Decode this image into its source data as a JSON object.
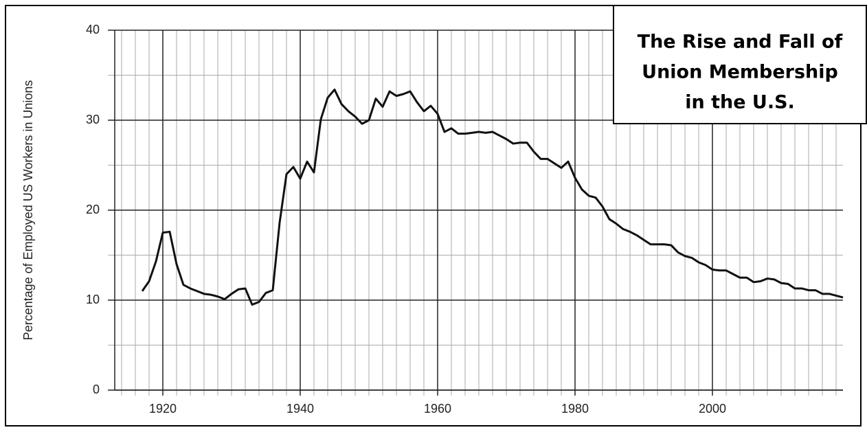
{
  "chart_data": {
    "type": "line",
    "title": [
      "The Rise and Fall of",
      "Union Membership",
      "in the U.S."
    ],
    "y_label": "Percentage of Employed US Workers in Unions",
    "x": [
      1917,
      1918,
      1919,
      1920,
      1921,
      1922,
      1923,
      1924,
      1925,
      1926,
      1927,
      1928,
      1929,
      1930,
      1931,
      1932,
      1933,
      1934,
      1935,
      1936,
      1937,
      1938,
      1939,
      1940,
      1941,
      1942,
      1943,
      1944,
      1945,
      1946,
      1947,
      1948,
      1949,
      1950,
      1951,
      1952,
      1953,
      1954,
      1955,
      1956,
      1957,
      1958,
      1959,
      1960,
      1961,
      1962,
      1963,
      1964,
      1965,
      1966,
      1967,
      1968,
      1969,
      1970,
      1971,
      1972,
      1973,
      1974,
      1975,
      1976,
      1977,
      1978,
      1979,
      1980,
      1981,
      1982,
      1983,
      1984,
      1985,
      1986,
      1987,
      1988,
      1989,
      1990,
      1991,
      1992,
      1993,
      1994,
      1995,
      1996,
      1997,
      1998,
      1999,
      2000,
      2001,
      2002,
      2003,
      2004,
      2005,
      2006,
      2007,
      2008,
      2009,
      2010,
      2011,
      2012,
      2013,
      2014,
      2015,
      2016,
      2017,
      2018,
      2019
    ],
    "series": [
      {
        "color": "#111111",
        "values": [
          11.0,
          12.1,
          14.3,
          17.5,
          17.6,
          14.0,
          11.7,
          11.3,
          11.0,
          10.7,
          10.6,
          10.4,
          10.1,
          10.7,
          11.2,
          11.3,
          9.5,
          9.8,
          10.8,
          11.1,
          18.6,
          24.0,
          24.8,
          23.5,
          25.4,
          24.2,
          30.1,
          32.5,
          33.4,
          31.8,
          31.0,
          30.4,
          29.6,
          30.0,
          32.4,
          31.5,
          33.2,
          32.7,
          32.9,
          33.2,
          32.0,
          31.0,
          31.6,
          30.7,
          28.7,
          29.1,
          28.5,
          28.5,
          28.6,
          28.7,
          28.6,
          28.7,
          28.3,
          27.9,
          27.4,
          27.5,
          27.5,
          26.5,
          25.7,
          25.7,
          25.2,
          24.7,
          25.4,
          23.6,
          22.3,
          21.6,
          21.4,
          20.4,
          19.0,
          18.5,
          17.9,
          17.6,
          17.2,
          16.7,
          16.2,
          16.2,
          16.2,
          16.1,
          15.3,
          14.9,
          14.7,
          14.2,
          13.9,
          13.4,
          13.3,
          13.3,
          12.9,
          12.5,
          12.5,
          12.0,
          12.1,
          12.4,
          12.3,
          11.9,
          11.8,
          11.3,
          11.3,
          11.1,
          11.1,
          10.7,
          10.7,
          10.5,
          10.3
        ]
      }
    ],
    "xlim": [
      1913,
      2019
    ],
    "ylim": [
      0,
      40
    ],
    "xticks": [
      1920,
      1940,
      1960,
      1980,
      2000
    ],
    "yticks": [
      0,
      10,
      20,
      30,
      40
    ],
    "x_minor_ticks": [
      1914,
      1916,
      1918,
      1922,
      1924,
      1926,
      1928,
      1930,
      1932,
      1934,
      1936,
      1938,
      1942,
      1944,
      1946,
      1948,
      1950,
      1952,
      1954,
      1956,
      1958,
      1962,
      1964,
      1966,
      1968,
      1970,
      1972,
      1974,
      1976,
      1978,
      1982,
      1984,
      1986,
      1988,
      1990,
      1992,
      1994,
      1996,
      1998,
      2002,
      2004,
      2006,
      2008,
      2010,
      2012,
      2014,
      2016,
      2018
    ],
    "y_minor_ticks": [
      5,
      15,
      25,
      35
    ],
    "grid": true
  }
}
